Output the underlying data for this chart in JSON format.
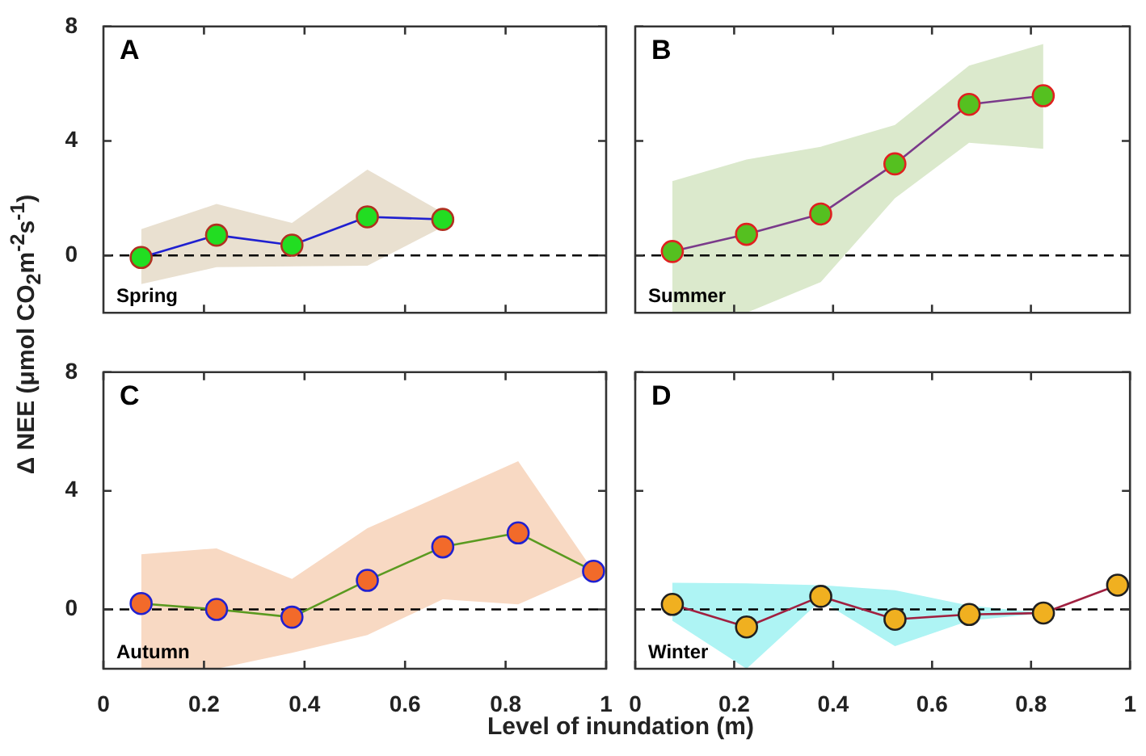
{
  "chart_data": [
    {
      "type": "line",
      "ylabel": "Δ NEE (μmol CO$_{2}$m$^{-2}$s$^{-1}$)",
      "annotations": [
        "A",
        "Spring"
      ],
      "x": [
        0.075,
        0.225,
        0.375,
        0.525,
        0.675
      ],
      "series": [
        {
          "color": "#22dd22",
          "values": [
            -0.07,
            0.71,
            0.36,
            1.35,
            1.26
          ],
          "lower": [
            -1.0,
            -0.41,
            -0.38,
            -0.36,
            1.0
          ],
          "upper": [
            0.92,
            1.8,
            1.14,
            3.0,
            1.5
          ]
        }
      ],
      "xlim": [
        0,
        1
      ],
      "xticks": [
        {
          "value": 0.2,
          "label": null
        },
        {
          "value": 0.4,
          "label": null
        },
        {
          "value": 0.6,
          "label": null
        },
        {
          "value": 0.8,
          "label": null
        }
      ],
      "ylim": [
        -2,
        8
      ],
      "yticks": [
        0,
        4,
        8
      ],
      "tick_labels": "y",
      "marker": "circle",
      "line_style": "solid",
      "legend": false,
      "ref_lines": [
        {
          "axis": "y",
          "value": 0,
          "color": "#000000",
          "line_style": "dashed"
        }
      ]
    },
    {
      "type": "line",
      "annotations": [
        "B",
        "Summer"
      ],
      "x": [
        0.075,
        0.225,
        0.375,
        0.525,
        0.675,
        0.825
      ],
      "series": [
        {
          "color": "#55c020",
          "values": [
            0.14,
            0.74,
            1.45,
            3.2,
            5.28,
            5.58
          ],
          "lower": [
            -2,
            -2,
            -0.93,
            2.0,
            3.94,
            3.73
          ],
          "upper": [
            2.6,
            3.35,
            3.8,
            4.56,
            6.63,
            7.39
          ]
        }
      ],
      "xlim": [
        0,
        1
      ],
      "xticks": [
        {
          "value": 0.2,
          "label": null
        },
        {
          "value": 0.4,
          "label": null
        },
        {
          "value": 0.6,
          "label": null
        },
        {
          "value": 0.8,
          "label": null
        }
      ],
      "ylim": [
        -2,
        8
      ],
      "yticks": [
        {
          "value": 0,
          "label": null
        },
        {
          "value": 4,
          "label": null
        },
        {
          "value": 8,
          "label": null
        }
      ],
      "tick_labels": false,
      "marker": "circle",
      "line_style": "solid",
      "legend": false,
      "ref_lines": [
        {
          "axis": "y",
          "value": 0,
          "color": "#000000",
          "line_style": "dashed"
        }
      ]
    },
    {
      "type": "line",
      "xlabel": "Level of inundation (m)",
      "annotations": [
        "C",
        "Autumn"
      ],
      "x": [
        0.075,
        0.225,
        0.375,
        0.525,
        0.675,
        0.825,
        0.975
      ],
      "series": [
        {
          "color": "#f26a2a",
          "values": [
            0.2,
            0,
            -0.26,
            0.98,
            2.11,
            2.58,
            1.29
          ],
          "lower": [
            -2,
            -2,
            -1.46,
            -0.86,
            0.34,
            0.17,
            1.29
          ],
          "upper": [
            1.86,
            2.06,
            1.03,
            2.74,
            3.86,
            5.0,
            1.29
          ]
        }
      ],
      "xlim": [
        0,
        1
      ],
      "xticks": [
        0,
        0.2,
        0.4,
        0.6,
        0.8,
        1
      ],
      "ylim": [
        -2,
        8
      ],
      "yticks": [
        0,
        4,
        8
      ],
      "marker": "circle",
      "line_style": "solid",
      "legend": false,
      "ref_lines": [
        {
          "axis": "y",
          "value": 0,
          "color": "#000000",
          "line_style": "dashed"
        }
      ]
    },
    {
      "type": "line",
      "annotations": [
        "D",
        "Winter"
      ],
      "x": [
        0.075,
        0.225,
        0.375,
        0.525,
        0.675,
        0.825,
        0.975
      ],
      "series": [
        {
          "color": "#f0b020",
          "values": [
            0.17,
            -0.59,
            0.44,
            -0.33,
            -0.17,
            -0.12,
            0.82
          ],
          "lower": [
            -0.38,
            -2,
            0.3,
            -1.24,
            -0.38,
            -0.12,
            null
          ],
          "upper": [
            0.9,
            0.88,
            0.82,
            0.65,
            0.13,
            -0.12,
            null
          ]
        }
      ],
      "xlim": [
        0,
        1
      ],
      "xticks": [
        0,
        0.2,
        0.4,
        0.6,
        0.8,
        1
      ],
      "ylim": [
        -2,
        8
      ],
      "yticks": [
        {
          "value": 0,
          "label": null
        },
        {
          "value": 4,
          "label": null
        },
        {
          "value": 8,
          "label": null
        }
      ],
      "tick_labels": "x",
      "marker": "circle",
      "line_style": "solid",
      "legend": false,
      "ref_lines": [
        {
          "axis": "y",
          "value": 0,
          "color": "#000000",
          "line_style": "dashed"
        }
      ]
    }
  ]
}
